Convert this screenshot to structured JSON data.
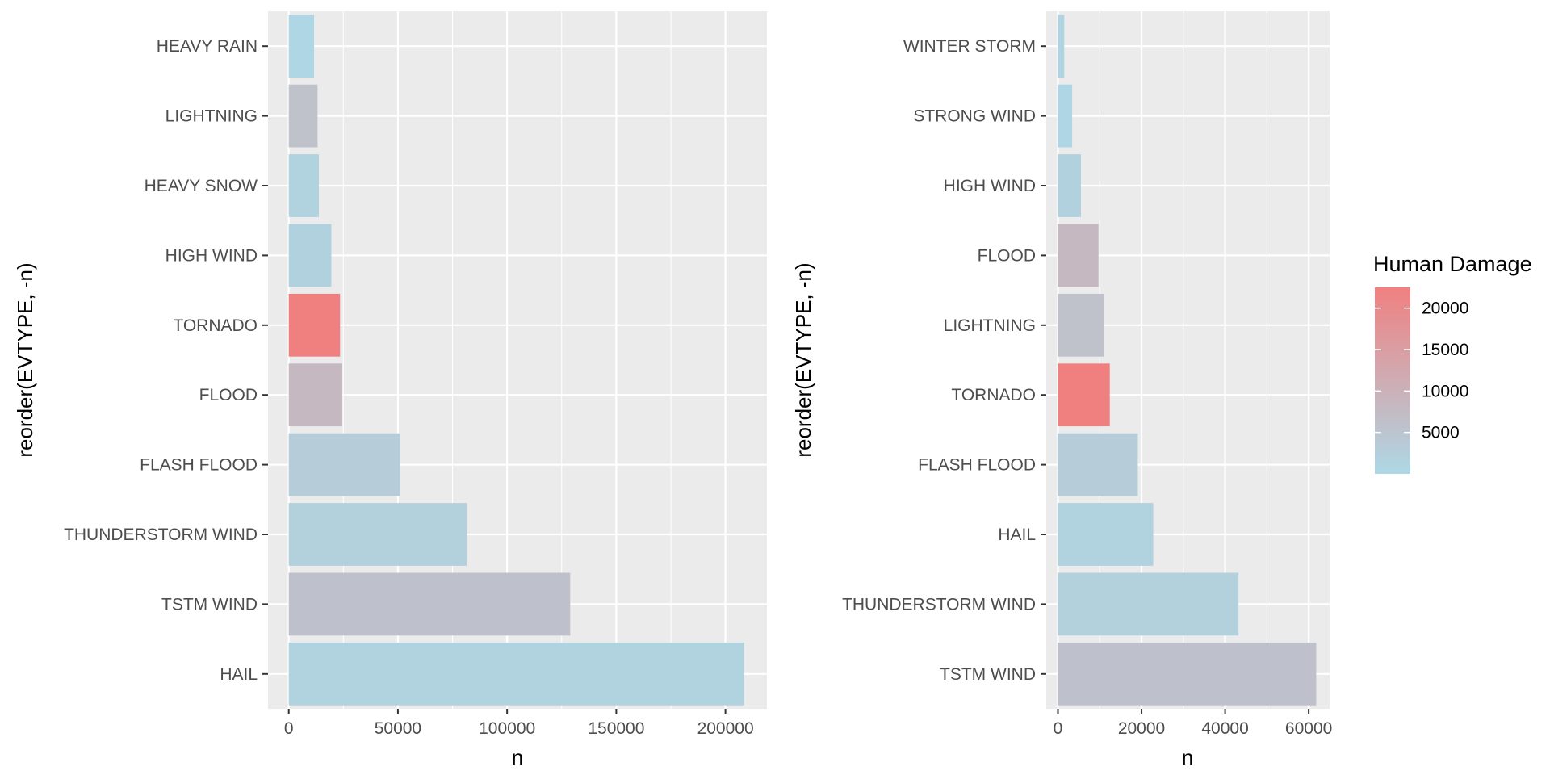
{
  "chart_data": [
    {
      "type": "bar",
      "orientation": "horizontal",
      "categories": [
        "HAIL",
        "TSTM WIND",
        "THUNDERSTORM WIND",
        "FLASH FLOOD",
        "FLOOD",
        "TORNADO",
        "HIGH WIND",
        "HEAVY SNOW",
        "LIGHTNING",
        "HEAVY RAIN"
      ],
      "values": [
        208500,
        128900,
        81500,
        51000,
        24500,
        23500,
        19500,
        13800,
        13200,
        11600
      ],
      "human_damage": [
        1500,
        5800,
        1900,
        3000,
        8300,
        22500,
        1700,
        1400,
        6000,
        500
      ],
      "xlabel": "n",
      "ylabel": "reorder(EVTYPE, -n)",
      "xlim": [
        -9500,
        219000
      ],
      "xticks": [
        0,
        50000,
        100000,
        150000,
        200000
      ],
      "xtick_labels": [
        "0",
        "50000",
        "100000",
        "150000",
        "200000"
      ],
      "grid": true
    },
    {
      "type": "bar",
      "orientation": "horizontal",
      "categories": [
        "TSTM WIND",
        "THUNDERSTORM WIND",
        "HAIL",
        "FLASH FLOOD",
        "TORNADO",
        "LIGHTNING",
        "FLOOD",
        "HIGH WIND",
        "STRONG WIND",
        "WINTER STORM"
      ],
      "values": [
        61800,
        43200,
        22800,
        19100,
        12400,
        11100,
        9700,
        5500,
        3400,
        1500
      ],
      "human_damage": [
        5800,
        1900,
        1500,
        3000,
        22500,
        6000,
        8300,
        1700,
        500,
        1000
      ],
      "xlabel": "n",
      "ylabel": "reorder(EVTYPE, -n)",
      "xlim": [
        -2800,
        65000
      ],
      "xticks": [
        0,
        20000,
        40000,
        60000
      ],
      "xtick_labels": [
        "0",
        "20000",
        "40000",
        "60000"
      ],
      "grid": true
    }
  ],
  "legend": {
    "title": "Human Damage",
    "min": 0,
    "max": 22500,
    "low_color": "#ADD8E6",
    "high_color": "#F08080",
    "ticks": [
      5000,
      10000,
      15000,
      20000
    ],
    "tick_labels": [
      "5000",
      "10000",
      "15000",
      "20000"
    ]
  },
  "colors": {
    "panel_bg": "#EBEBEB",
    "grid_major": "#FFFFFF",
    "axis_tick": "#333333"
  }
}
